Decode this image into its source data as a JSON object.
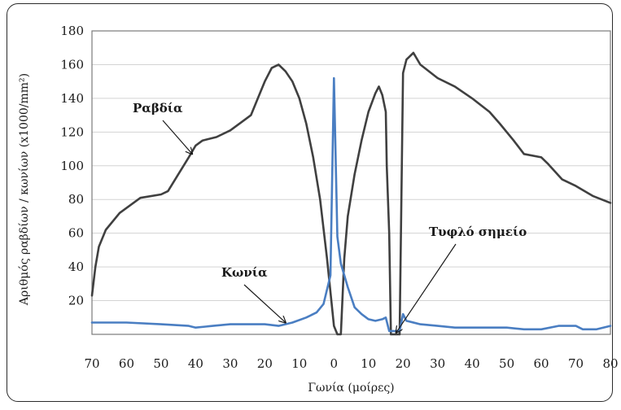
{
  "chart_data": {
    "type": "line",
    "title": "",
    "xlabel": "Γωνία (μοίρες)",
    "ylabel": "Αριθμός ραβδίων / κωνίων (x1000/mm²)",
    "ylim": [
      0,
      180
    ],
    "yticks": [
      20,
      40,
      60,
      80,
      100,
      120,
      140,
      160,
      180
    ],
    "y_tick_labels": [
      "20",
      "40",
      "60",
      "80",
      "100",
      "120",
      "140",
      "160",
      "180"
    ],
    "xlim": [
      -70,
      80
    ],
    "xticks": [
      -70,
      -60,
      -50,
      -40,
      -30,
      -20,
      -10,
      0,
      10,
      20,
      30,
      40,
      50,
      60,
      70,
      80
    ],
    "x_tick_labels": [
      "70",
      "60",
      "50",
      "40",
      "30",
      "20",
      "10",
      "0",
      "10",
      "20",
      "30",
      "40",
      "50",
      "60",
      "70",
      "80"
    ],
    "grid": "horizontal",
    "series": [
      {
        "name": "Ραβδία",
        "color": "#404040",
        "points": [
          [
            -70,
            23
          ],
          [
            -69,
            40
          ],
          [
            -68,
            52
          ],
          [
            -66,
            62
          ],
          [
            -62,
            72
          ],
          [
            -56,
            81
          ],
          [
            -50,
            83
          ],
          [
            -48,
            85
          ],
          [
            -45,
            95
          ],
          [
            -42,
            105
          ],
          [
            -40,
            112
          ],
          [
            -38,
            115
          ],
          [
            -34,
            117
          ],
          [
            -30,
            121
          ],
          [
            -26,
            127
          ],
          [
            -24,
            130
          ],
          [
            -22,
            140
          ],
          [
            -20,
            150
          ],
          [
            -18,
            158
          ],
          [
            -16,
            160
          ],
          [
            -14,
            156
          ],
          [
            -12,
            150
          ],
          [
            -10,
            140
          ],
          [
            -8,
            125
          ],
          [
            -6,
            105
          ],
          [
            -4,
            80
          ],
          [
            -2,
            45
          ],
          [
            0,
            5
          ],
          [
            1,
            0
          ],
          [
            2,
            0
          ],
          [
            3,
            45
          ],
          [
            4,
            70
          ],
          [
            6,
            95
          ],
          [
            8,
            115
          ],
          [
            10,
            132
          ],
          [
            12,
            143
          ],
          [
            13,
            147
          ],
          [
            14,
            142
          ],
          [
            15,
            132
          ],
          [
            15.3,
            100
          ],
          [
            16,
            60
          ],
          [
            16.5,
            0
          ],
          [
            19,
            0
          ],
          [
            20,
            155
          ],
          [
            21,
            163
          ],
          [
            22,
            165
          ],
          [
            23,
            167
          ],
          [
            25,
            160
          ],
          [
            30,
            152
          ],
          [
            35,
            147
          ],
          [
            40,
            140
          ],
          [
            45,
            132
          ],
          [
            48,
            125
          ],
          [
            52,
            115
          ],
          [
            55,
            107
          ],
          [
            60,
            105
          ],
          [
            62,
            101
          ],
          [
            66,
            92
          ],
          [
            70,
            88
          ],
          [
            75,
            82
          ],
          [
            80,
            78
          ]
        ]
      },
      {
        "name": "Κωνία",
        "color": "#4a7ec2",
        "points": [
          [
            -70,
            7
          ],
          [
            -60,
            7
          ],
          [
            -50,
            6
          ],
          [
            -42,
            5
          ],
          [
            -40,
            4
          ],
          [
            -35,
            5
          ],
          [
            -30,
            6
          ],
          [
            -25,
            6
          ],
          [
            -20,
            6
          ],
          [
            -16,
            5
          ],
          [
            -12,
            7
          ],
          [
            -8,
            10
          ],
          [
            -5,
            13
          ],
          [
            -3,
            18
          ],
          [
            -1,
            35
          ],
          [
            0,
            152
          ],
          [
            1,
            58
          ],
          [
            2,
            42
          ],
          [
            4,
            28
          ],
          [
            6,
            16
          ],
          [
            8,
            12
          ],
          [
            10,
            9
          ],
          [
            12,
            8
          ],
          [
            14,
            9
          ],
          [
            15,
            10
          ],
          [
            16,
            2
          ],
          [
            19,
            2
          ],
          [
            20,
            12
          ],
          [
            21,
            8
          ],
          [
            25,
            6
          ],
          [
            30,
            5
          ],
          [
            35,
            4
          ],
          [
            40,
            4
          ],
          [
            45,
            4
          ],
          [
            50,
            4
          ],
          [
            55,
            3
          ],
          [
            60,
            3
          ],
          [
            65,
            5
          ],
          [
            70,
            5
          ],
          [
            72,
            3
          ],
          [
            76,
            3
          ],
          [
            80,
            5
          ]
        ]
      }
    ],
    "annotations": [
      {
        "text": "Ραβδία",
        "arrow_to": [
          -41,
          107
        ]
      },
      {
        "text": "Κωνία",
        "arrow_to": [
          -14,
          7
        ]
      },
      {
        "text": "Τυφλό σημείο",
        "arrow_to": [
          18,
          1
        ]
      }
    ]
  }
}
